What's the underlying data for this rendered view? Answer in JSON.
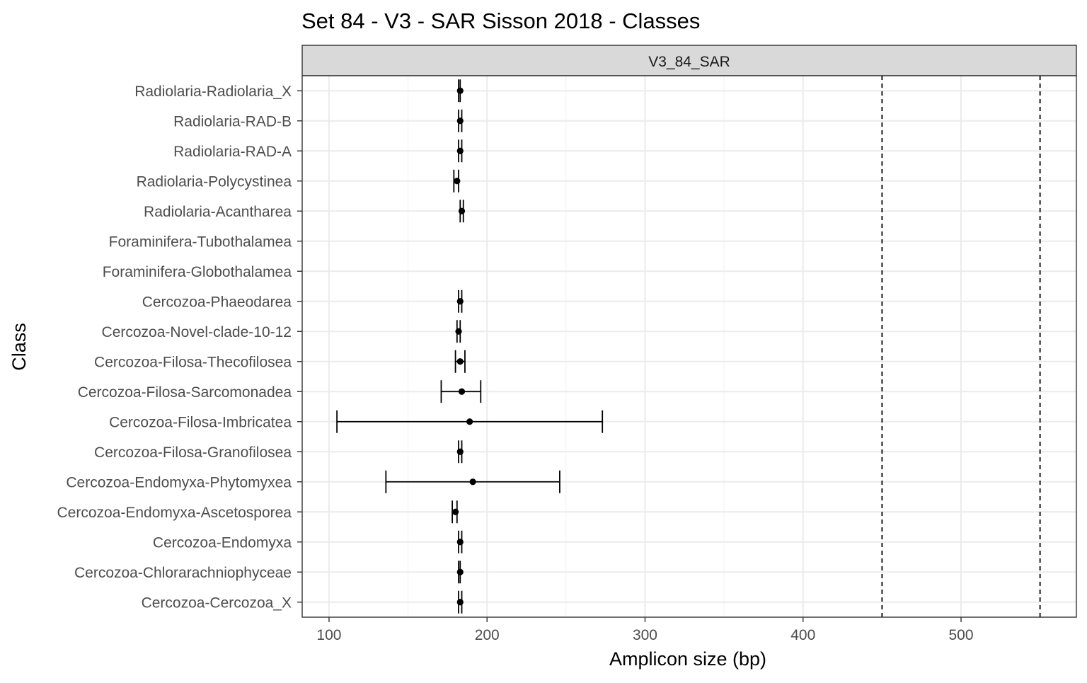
{
  "chart_data": {
    "type": "scatter",
    "title": "Set 84 - V3 - SAR Sisson 2018 - Classes",
    "panel_label": "V3_84_SAR",
    "xlabel": "Amplicon size (bp)",
    "ylabel": "Class",
    "xlim": [
      83,
      573
    ],
    "x_ticks": [
      100,
      200,
      300,
      400,
      500
    ],
    "x_tick_labels": [
      "100",
      "200",
      "300",
      "400",
      "500"
    ],
    "grid": true,
    "reference_lines": [
      450,
      550
    ],
    "categories": [
      "Radiolaria-Radiolaria_X",
      "Radiolaria-RAD-B",
      "Radiolaria-RAD-A",
      "Radiolaria-Polycystinea",
      "Radiolaria-Acantharea",
      "Foraminifera-Tubothalamea",
      "Foraminifera-Globothalamea",
      "Cercozoa-Phaeodarea",
      "Cercozoa-Novel-clade-10-12",
      "Cercozoa-Filosa-Thecofilosea",
      "Cercozoa-Filosa-Sarcomonadea",
      "Cercozoa-Filosa-Imbricatea",
      "Cercozoa-Filosa-Granofilosea",
      "Cercozoa-Endomyxa-Phytomyxea",
      "Cercozoa-Endomyxa-Ascetosporea",
      "Cercozoa-Endomyxa",
      "Cercozoa-Chlorarachniophyceae",
      "Cercozoa-Cercozoa_X"
    ],
    "points": [
      {
        "class": "Radiolaria-Radiolaria_X",
        "mean": 183,
        "min": 182,
        "max": 183
      },
      {
        "class": "Radiolaria-RAD-B",
        "mean": 183,
        "min": 182,
        "max": 184
      },
      {
        "class": "Radiolaria-RAD-A",
        "mean": 183,
        "min": 182,
        "max": 184
      },
      {
        "class": "Radiolaria-Polycystinea",
        "mean": 181,
        "min": 179,
        "max": 182
      },
      {
        "class": "Radiolaria-Acantharea",
        "mean": 184,
        "min": 183,
        "max": 185
      },
      {
        "class": "Foraminifera-Tubothalamea",
        "mean": null,
        "min": null,
        "max": null
      },
      {
        "class": "Foraminifera-Globothalamea",
        "mean": null,
        "min": null,
        "max": null
      },
      {
        "class": "Cercozoa-Phaeodarea",
        "mean": 183,
        "min": 182,
        "max": 184
      },
      {
        "class": "Cercozoa-Novel-clade-10-12",
        "mean": 182,
        "min": 181,
        "max": 183
      },
      {
        "class": "Cercozoa-Filosa-Thecofilosea",
        "mean": 183,
        "min": 180,
        "max": 186
      },
      {
        "class": "Cercozoa-Filosa-Sarcomonadea",
        "mean": 184,
        "min": 171,
        "max": 196
      },
      {
        "class": "Cercozoa-Filosa-Imbricatea",
        "mean": 189,
        "min": 105,
        "max": 273
      },
      {
        "class": "Cercozoa-Filosa-Granofilosea",
        "mean": 183,
        "min": 182,
        "max": 184
      },
      {
        "class": "Cercozoa-Endomyxa-Phytomyxea",
        "mean": 191,
        "min": 136,
        "max": 246
      },
      {
        "class": "Cercozoa-Endomyxa-Ascetosporea",
        "mean": 180,
        "min": 178,
        "max": 181
      },
      {
        "class": "Cercozoa-Endomyxa",
        "mean": 183,
        "min": 182,
        "max": 184
      },
      {
        "class": "Cercozoa-Chlorarachniophyceae",
        "mean": 183,
        "min": 182,
        "max": 183
      },
      {
        "class": "Cercozoa-Cercozoa_X",
        "mean": 183,
        "min": 182,
        "max": 184
      }
    ]
  }
}
